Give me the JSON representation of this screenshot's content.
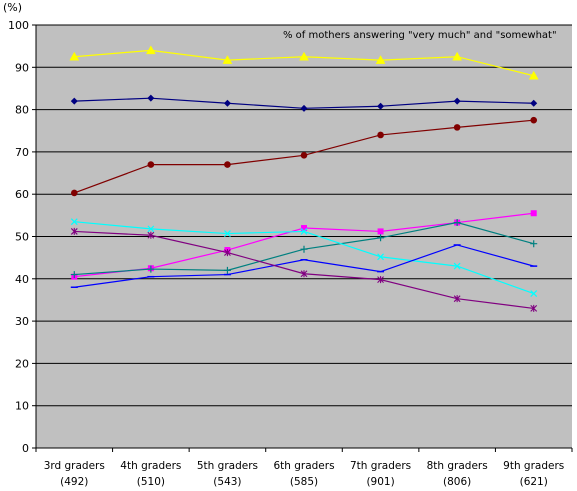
{
  "chart_data": {
    "type": "line",
    "title": "",
    "xlabel": "",
    "ylabel": "",
    "y_unit_label": "(%)",
    "annotation": "% of mothers answering \"very much\" and \"somewhat\"",
    "ylim": [
      0,
      100
    ],
    "yticks": [
      0,
      10,
      20,
      30,
      40,
      50,
      60,
      70,
      80,
      90,
      100
    ],
    "ytick_labels": [
      "0",
      "10",
      "20",
      "30",
      "40",
      "50",
      "60",
      "70",
      "80",
      "90",
      "100"
    ],
    "categories": [
      {
        "grade": "3rd graders",
        "n": "(492)"
      },
      {
        "grade": "4th graders",
        "n": "(510)"
      },
      {
        "grade": "5th graders",
        "n": "(543)"
      },
      {
        "grade": "6th graders",
        "n": "(585)"
      },
      {
        "grade": "7th graders",
        "n": "(901)"
      },
      {
        "grade": "8th graders",
        "n": "(806)"
      },
      {
        "grade": "9th graders",
        "n": "(621)"
      }
    ],
    "plot_background": "#c0c0c0",
    "grid": "horizontal",
    "legend": "none",
    "series": [
      {
        "color": "#ffff00",
        "marker": "triangle",
        "values": [
          92.5,
          94,
          91.7,
          92.5,
          91.7,
          92.5,
          88
        ]
      },
      {
        "color": "#000080",
        "marker": "diamond",
        "values": [
          82,
          82.7,
          81.5,
          80.3,
          80.8,
          82,
          81.5
        ]
      },
      {
        "color": "#800000",
        "marker": "circle",
        "values": [
          60.3,
          67,
          67,
          69.2,
          74,
          75.8,
          77.5
        ]
      },
      {
        "color": "#ff00ff",
        "marker": "square",
        "values": [
          40.5,
          42.5,
          46.8,
          52,
          51.2,
          53.3,
          55.5
        ]
      },
      {
        "color": "#008080",
        "marker": "plus",
        "values": [
          41,
          42.3,
          42,
          47,
          49.7,
          53.3,
          48.3
        ]
      },
      {
        "color": "#00ffff",
        "marker": "x",
        "values": [
          53.5,
          51.8,
          50.7,
          51.2,
          45.2,
          43,
          36.5
        ]
      },
      {
        "color": "#0000ff",
        "marker": "dash",
        "values": [
          38,
          40.5,
          41,
          44.5,
          41.7,
          48,
          43
        ]
      },
      {
        "color": "#800080",
        "marker": "asterisk",
        "values": [
          51.2,
          50.3,
          46.2,
          41.2,
          39.8,
          35.3,
          33
        ]
      }
    ]
  }
}
